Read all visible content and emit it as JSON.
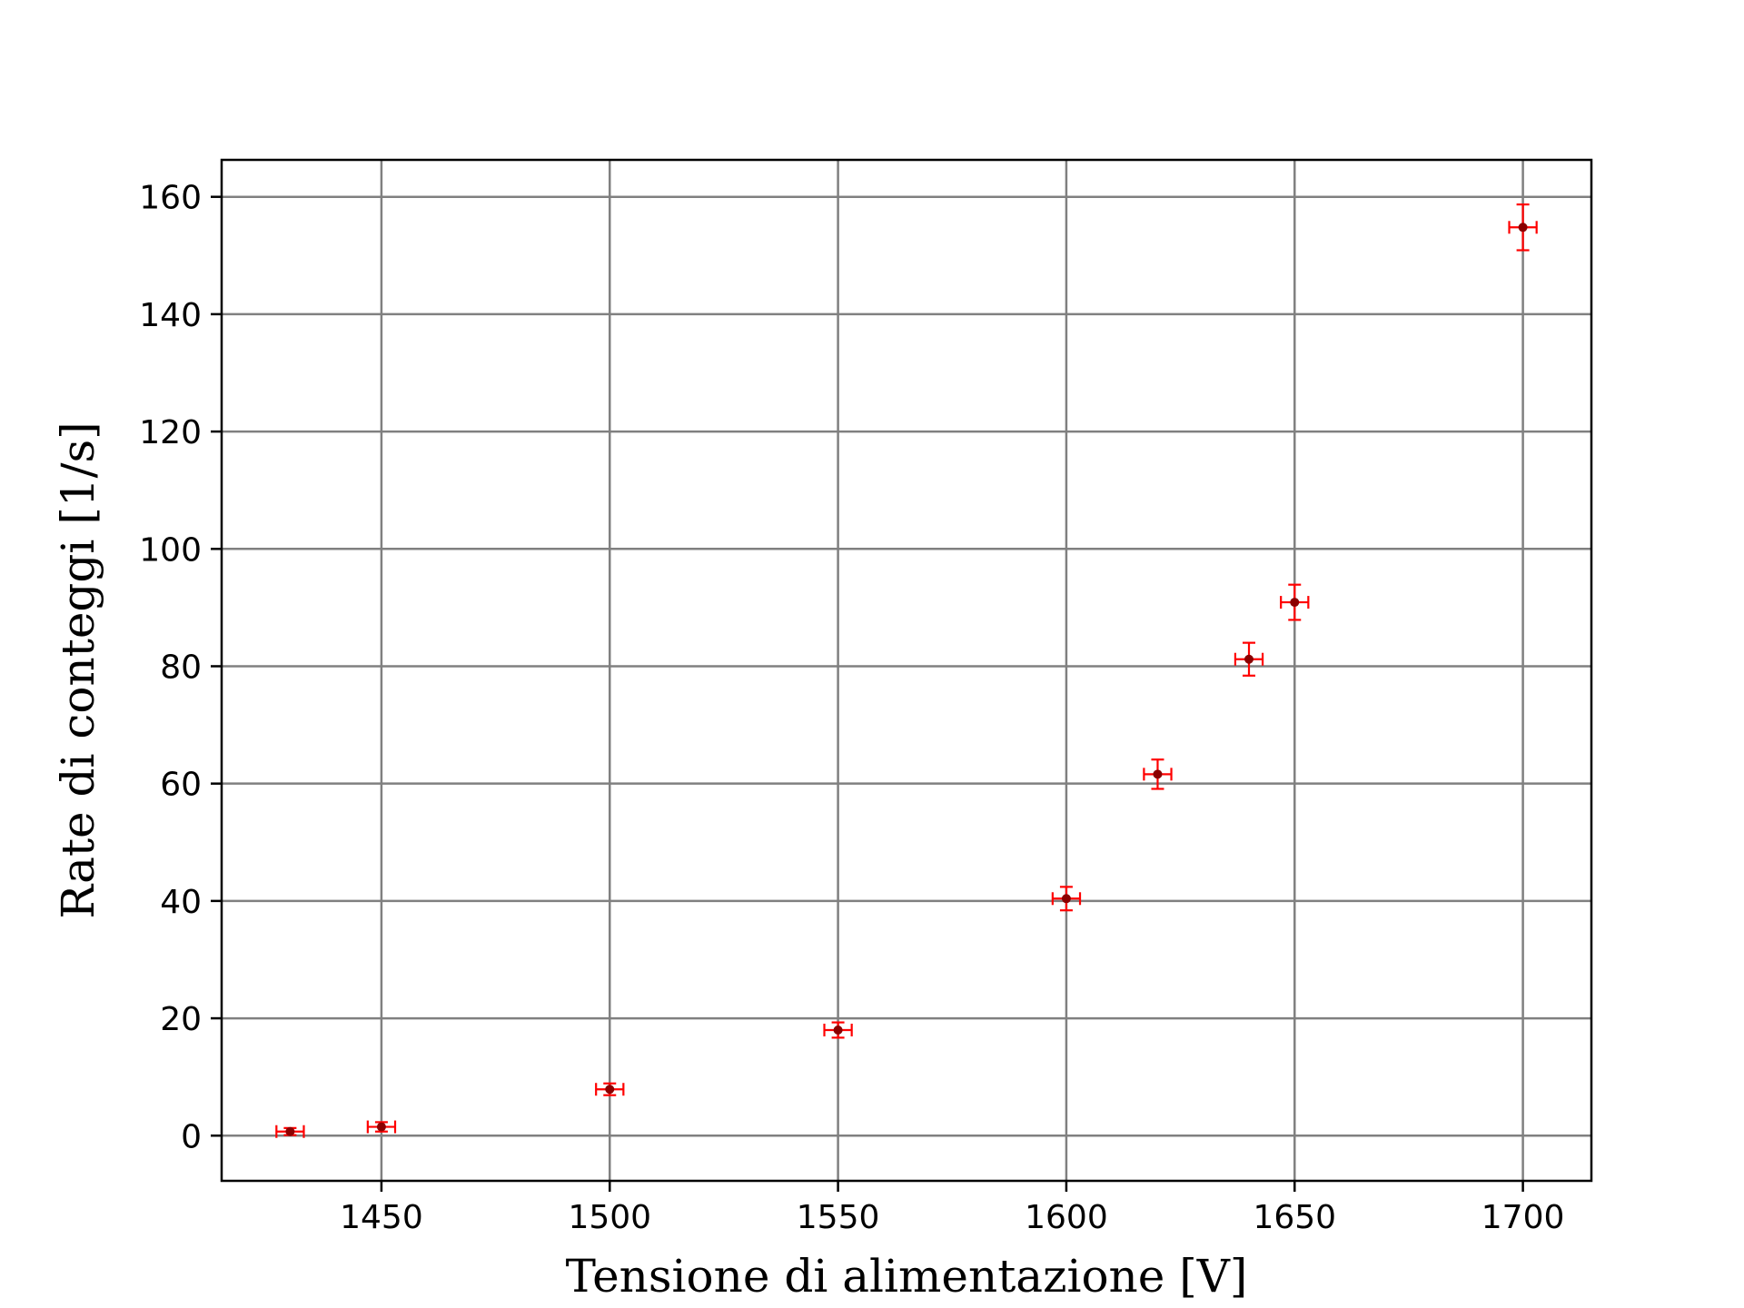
{
  "chart_data": {
    "type": "scatter",
    "title": "",
    "xlabel": "Tensione di alimentazione [V]",
    "ylabel": "Rate di conteggi [1/s]",
    "xlim": [
      1415,
      1715
    ],
    "ylim": [
      -7.7,
      166.3
    ],
    "xticks": [
      1450,
      1500,
      1550,
      1600,
      1650,
      1700
    ],
    "xtick_labels": [
      "1450",
      "1500",
      "1550",
      "1600",
      "1650",
      "1700"
    ],
    "yticks": [
      0,
      20,
      40,
      60,
      80,
      100,
      120,
      140,
      160
    ],
    "ytick_labels": [
      "0",
      "20",
      "40",
      "60",
      "80",
      "100",
      "120",
      "140",
      "160"
    ],
    "grid": true,
    "series": [
      {
        "marker_color": "#8b0000",
        "error_color": "#ff0000",
        "points": [
          {
            "x": 1430,
            "y": 0.7,
            "xerr": 3,
            "yerr": 0.6
          },
          {
            "x": 1450,
            "y": 1.5,
            "xerr": 3,
            "yerr": 0.8
          },
          {
            "x": 1500,
            "y": 7.9,
            "xerr": 3,
            "yerr": 1.0
          },
          {
            "x": 1550,
            "y": 18.0,
            "xerr": 3,
            "yerr": 1.3
          },
          {
            "x": 1600,
            "y": 40.4,
            "xerr": 3,
            "yerr": 2.0
          },
          {
            "x": 1620,
            "y": 61.6,
            "xerr": 3,
            "yerr": 2.5
          },
          {
            "x": 1640,
            "y": 81.2,
            "xerr": 3,
            "yerr": 2.8
          },
          {
            "x": 1650,
            "y": 90.9,
            "xerr": 3,
            "yerr": 3.0
          },
          {
            "x": 1700,
            "y": 154.8,
            "xerr": 3,
            "yerr": 3.9
          }
        ]
      }
    ]
  }
}
